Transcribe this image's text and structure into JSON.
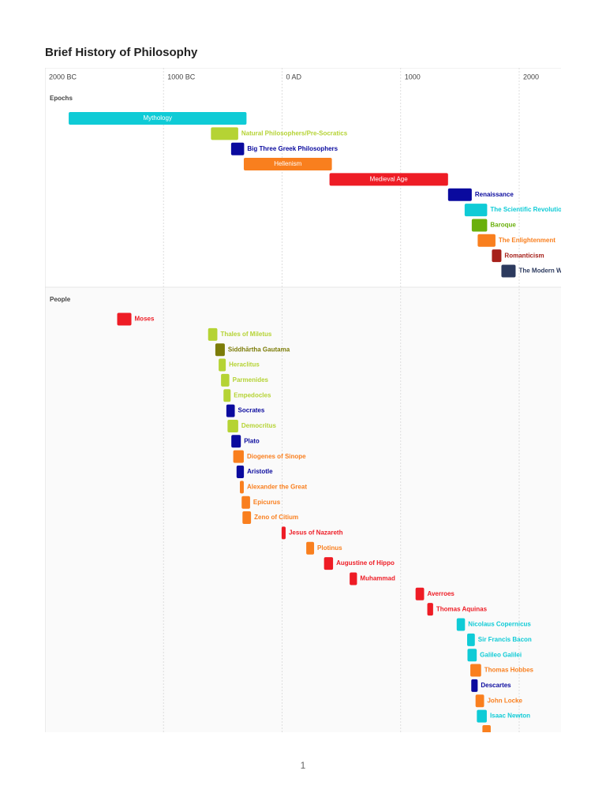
{
  "chart_data": {
    "type": "timeline",
    "title": "Brief History of Philosophy",
    "xlim": [
      -2000,
      2353
    ],
    "xticks": [
      {
        "value": -2000,
        "label": "2000 BC"
      },
      {
        "value": -1000,
        "label": "1000 BC"
      },
      {
        "value": 0,
        "label": "0 AD"
      },
      1000,
      2000
    ],
    "grid": true,
    "groups": [
      {
        "name": "Epochs",
        "labels": [
          "Mythology",
          "Natural Philosophers/Pre-Socratics",
          "Big Three Greek Philosophers",
          "Hellenism",
          "Medieval Age",
          "Renaissance",
          "The Scientific Revolution",
          "Baroque",
          "The Enlightenment",
          "Romanticism",
          "The Modern World"
        ],
        "starts": [
          -1800,
          -600,
          -430,
          -323,
          400,
          1400,
          1540,
          1600,
          1650,
          1770,
          1850
        ],
        "ends": [
          -300,
          -370,
          -320,
          420,
          1400,
          1600,
          1730,
          1730,
          1800,
          1850,
          1970
        ],
        "colors": [
          "#0fcbd6",
          "#b5d334",
          "#0a0a9e",
          "#f97f1e",
          "#ee1c25",
          "#0a0a9e",
          "#0fcbd6",
          "#6ab00c",
          "#f97f1e",
          "#a6201a",
          "#2c3a5e"
        ]
      },
      {
        "name": "People",
        "labels": [
          "Moses",
          "Thales of Miletus",
          "Siddhārtha Gautama",
          "Heraclitus",
          "Parmenides",
          "Empedocles",
          "Socrates",
          "Democritus",
          "Plato",
          "Diogenes of Sinope",
          "Aristotle",
          "Alexander the Great",
          "Epicurus",
          "Zeno of Citium",
          "Jesus of Nazareth",
          "Plotinus",
          "Augustine of Hippo",
          "Muhammad",
          "Averroes",
          "Thomas Aquinas",
          "Nicolaus Copernicus",
          "Sir Francis Bacon",
          "Galileo Galilei",
          "Thomas Hobbes",
          "Descartes",
          "John Locke",
          "Isaac Newton",
          null
        ],
        "starts": [
          -1391,
          -624,
          -563,
          -535,
          -515,
          -494,
          -470,
          -460,
          -428,
          -412,
          -384,
          -356,
          -341,
          -334,
          -4,
          204,
          354,
          570,
          1126,
          1225,
          1473,
          1561,
          1564,
          1588,
          1596,
          1632,
          1643,
          1690
        ],
        "ends": [
          -1271,
          -546,
          -483,
          -475,
          -445,
          -434,
          -399,
          -370,
          -348,
          -323,
          -322,
          -323,
          -270,
          -262,
          30,
          270,
          430,
          632,
          1198,
          1274,
          1543,
          1626,
          1642,
          1679,
          1650,
          1704,
          1727,
          1760
        ],
        "colors": [
          "#ee1c25",
          "#b5d334",
          "#7c7c08",
          "#b5d334",
          "#b5d334",
          "#b5d334",
          "#0a0a9e",
          "#b5d334",
          "#0a0a9e",
          "#f97f1e",
          "#0a0a9e",
          "#f97f1e",
          "#f97f1e",
          "#f97f1e",
          "#ee1c25",
          "#f97f1e",
          "#ee1c25",
          "#ee1c25",
          "#ee1c25",
          "#ee1c25",
          "#0fcbd6",
          "#0fcbd6",
          "#0fcbd6",
          "#f97f1e",
          "#0a0a9e",
          "#f97f1e",
          "#0fcbd6",
          "#f97f1e"
        ]
      }
    ]
  },
  "footer": {
    "page_number": "1"
  }
}
